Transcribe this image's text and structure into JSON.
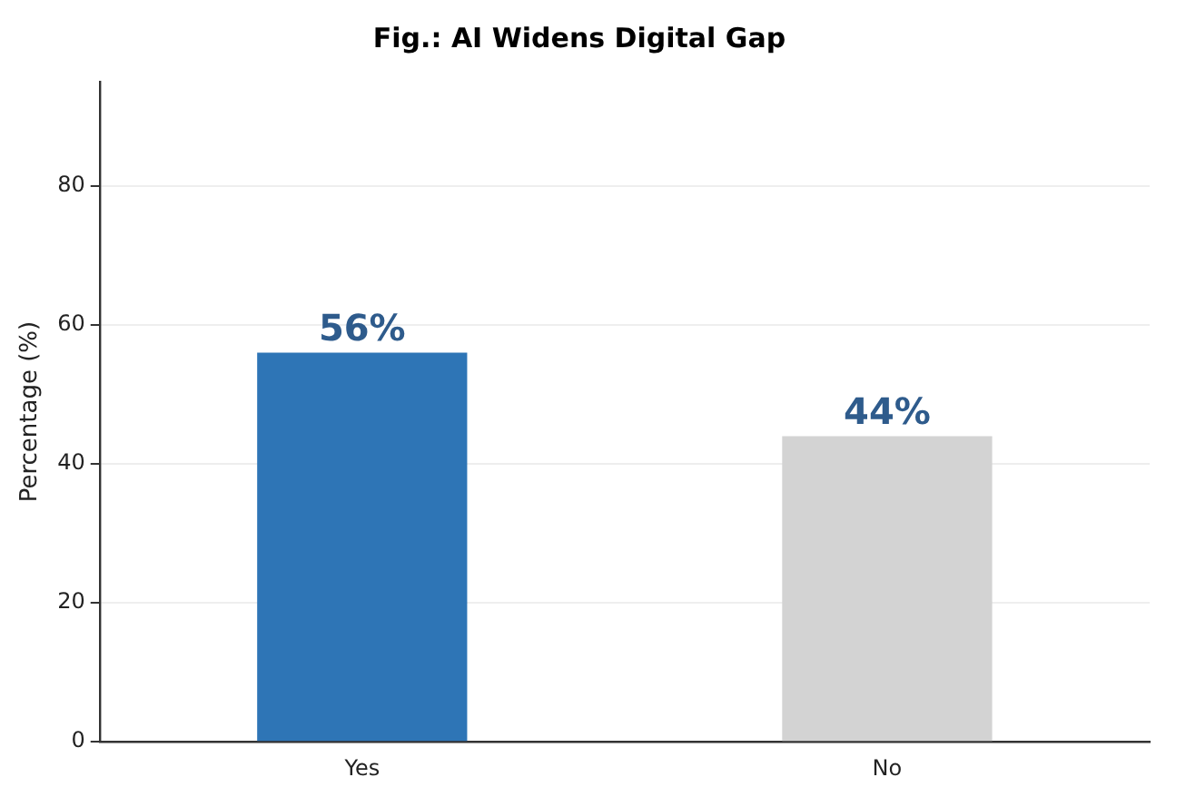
{
  "chart_data": {
    "type": "bar",
    "title": "Fig.: AI Widens Digital Gap",
    "ylabel": "Percentage (%)",
    "categories": [
      "Yes",
      "No"
    ],
    "values": [
      56,
      44
    ],
    "colors": [
      "#2e75b6",
      "#d3d3d3"
    ],
    "value_labels": [
      "56%",
      "44%"
    ],
    "ylim": [
      0,
      95
    ],
    "yticks": [
      0,
      20,
      40,
      60,
      80
    ],
    "grid": "y",
    "legend": false
  }
}
